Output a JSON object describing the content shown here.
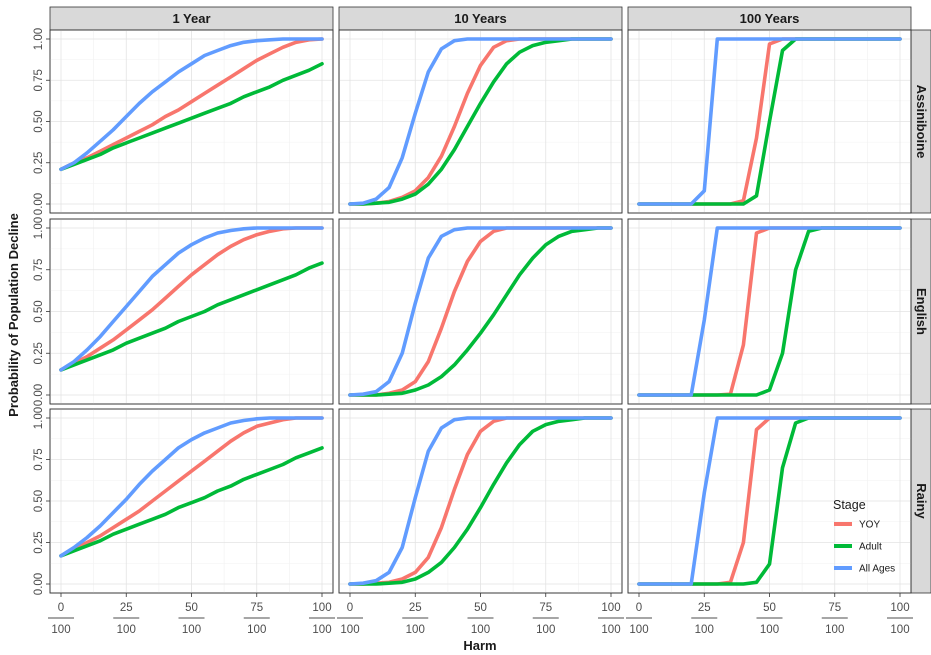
{
  "chart_data": {
    "type": "line",
    "facet_columns": [
      "1 Year",
      "10 Years",
      "100 Years"
    ],
    "facet_rows": [
      "Assiniboine",
      "English",
      "Rainy"
    ],
    "xlabel": "Harm",
    "ylabel": "Probability of Population Decline",
    "xlim": [
      0,
      1
    ],
    "ylim": [
      0,
      1
    ],
    "x_ticks": [
      {
        "num": "0",
        "den": "100"
      },
      {
        "num": "25",
        "den": "100"
      },
      {
        "num": "50",
        "den": "100"
      },
      {
        "num": "75",
        "den": "100"
      },
      {
        "num": "100",
        "den": "100"
      }
    ],
    "y_tick_labels": [
      "0.00",
      "0.25",
      "0.50",
      "0.75",
      "1.00"
    ],
    "y_tick_values": [
      0,
      0.25,
      0.5,
      0.75,
      1
    ],
    "grid": true,
    "legend": {
      "title": "Stage",
      "placement": "bottom-right inside",
      "entries": [
        {
          "label": "YOY",
          "color": "#f8766d"
        },
        {
          "label": "Adult",
          "color": "#00ba38"
        },
        {
          "label": "All Ages",
          "color": "#619cff"
        }
      ]
    },
    "x": [
      0,
      0.05,
      0.1,
      0.15,
      0.2,
      0.25,
      0.3,
      0.35,
      0.4,
      0.45,
      0.5,
      0.55,
      0.6,
      0.65,
      0.7,
      0.75,
      0.8,
      0.85,
      0.9,
      0.95,
      1.0
    ],
    "panels": [
      {
        "row": "Assiniboine",
        "col": "1 Year",
        "series": [
          {
            "name": "All Ages",
            "values": [
              0.21,
              0.25,
              0.31,
              0.38,
              0.45,
              0.53,
              0.61,
              0.68,
              0.74,
              0.8,
              0.85,
              0.9,
              0.93,
              0.96,
              0.98,
              0.99,
              0.995,
              1.0,
              1.0,
              1.0,
              1.0
            ]
          },
          {
            "name": "YOY",
            "values": [
              0.21,
              0.25,
              0.28,
              0.32,
              0.36,
              0.4,
              0.44,
              0.48,
              0.53,
              0.57,
              0.62,
              0.67,
              0.72,
              0.77,
              0.82,
              0.87,
              0.91,
              0.95,
              0.98,
              0.995,
              1.0
            ]
          },
          {
            "name": "Adult",
            "values": [
              0.21,
              0.24,
              0.27,
              0.3,
              0.34,
              0.37,
              0.4,
              0.43,
              0.46,
              0.49,
              0.52,
              0.55,
              0.58,
              0.61,
              0.65,
              0.68,
              0.71,
              0.75,
              0.78,
              0.81,
              0.85
            ]
          }
        ]
      },
      {
        "row": "Assiniboine",
        "col": "10 Years",
        "series": [
          {
            "name": "All Ages",
            "values": [
              0.0,
              0.005,
              0.03,
              0.1,
              0.28,
              0.55,
              0.8,
              0.94,
              0.99,
              1.0,
              1.0,
              1.0,
              1.0,
              1.0,
              1.0,
              1.0,
              1.0,
              1.0,
              1.0,
              1.0,
              1.0
            ]
          },
          {
            "name": "YOY",
            "values": [
              0.0,
              0.0,
              0.005,
              0.015,
              0.04,
              0.08,
              0.16,
              0.29,
              0.47,
              0.67,
              0.84,
              0.95,
              0.99,
              1.0,
              1.0,
              1.0,
              1.0,
              1.0,
              1.0,
              1.0,
              1.0
            ]
          },
          {
            "name": "Adult",
            "values": [
              0.0,
              0.0,
              0.005,
              0.01,
              0.03,
              0.06,
              0.12,
              0.21,
              0.33,
              0.47,
              0.61,
              0.74,
              0.85,
              0.92,
              0.96,
              0.98,
              0.99,
              1.0,
              1.0,
              1.0,
              1.0
            ]
          }
        ]
      },
      {
        "row": "Assiniboine",
        "col": "100 Years",
        "series": [
          {
            "name": "All Ages",
            "values": [
              0.0,
              0.0,
              0.0,
              0.0,
              0.0,
              0.08,
              1.0,
              1.0,
              1.0,
              1.0,
              1.0,
              1.0,
              1.0,
              1.0,
              1.0,
              1.0,
              1.0,
              1.0,
              1.0,
              1.0,
              1.0
            ]
          },
          {
            "name": "YOY",
            "values": [
              0.0,
              0.0,
              0.0,
              0.0,
              0.0,
              0.0,
              0.0,
              0.0,
              0.02,
              0.4,
              0.97,
              1.0,
              1.0,
              1.0,
              1.0,
              1.0,
              1.0,
              1.0,
              1.0,
              1.0,
              1.0
            ]
          },
          {
            "name": "Adult",
            "values": [
              0.0,
              0.0,
              0.0,
              0.0,
              0.0,
              0.0,
              0.0,
              0.0,
              0.0,
              0.05,
              0.5,
              0.93,
              1.0,
              1.0,
              1.0,
              1.0,
              1.0,
              1.0,
              1.0,
              1.0,
              1.0
            ]
          }
        ]
      },
      {
        "row": "English",
        "col": "1 Year",
        "series": [
          {
            "name": "All Ages",
            "values": [
              0.15,
              0.2,
              0.27,
              0.35,
              0.44,
              0.53,
              0.62,
              0.71,
              0.78,
              0.85,
              0.9,
              0.94,
              0.97,
              0.985,
              0.995,
              1.0,
              1.0,
              1.0,
              1.0,
              1.0,
              1.0
            ]
          },
          {
            "name": "YOY",
            "values": [
              0.15,
              0.19,
              0.23,
              0.28,
              0.33,
              0.39,
              0.45,
              0.51,
              0.58,
              0.65,
              0.72,
              0.78,
              0.84,
              0.89,
              0.93,
              0.96,
              0.98,
              0.995,
              1.0,
              1.0,
              1.0
            ]
          },
          {
            "name": "Adult",
            "values": [
              0.15,
              0.18,
              0.21,
              0.24,
              0.27,
              0.31,
              0.34,
              0.37,
              0.4,
              0.44,
              0.47,
              0.5,
              0.54,
              0.57,
              0.6,
              0.63,
              0.66,
              0.69,
              0.72,
              0.76,
              0.79
            ]
          }
        ]
      },
      {
        "row": "English",
        "col": "10 Years",
        "series": [
          {
            "name": "All Ages",
            "values": [
              0.0,
              0.005,
              0.02,
              0.08,
              0.25,
              0.55,
              0.82,
              0.95,
              0.99,
              1.0,
              1.0,
              1.0,
              1.0,
              1.0,
              1.0,
              1.0,
              1.0,
              1.0,
              1.0,
              1.0,
              1.0
            ]
          },
          {
            "name": "YOY",
            "values": [
              0.0,
              0.0,
              0.0,
              0.01,
              0.03,
              0.08,
              0.2,
              0.4,
              0.62,
              0.8,
              0.92,
              0.98,
              1.0,
              1.0,
              1.0,
              1.0,
              1.0,
              1.0,
              1.0,
              1.0,
              1.0
            ]
          },
          {
            "name": "Adult",
            "values": [
              0.0,
              0.0,
              0.0,
              0.005,
              0.01,
              0.03,
              0.06,
              0.11,
              0.18,
              0.27,
              0.37,
              0.48,
              0.6,
              0.72,
              0.82,
              0.9,
              0.95,
              0.98,
              0.99,
              1.0,
              1.0
            ]
          }
        ]
      },
      {
        "row": "English",
        "col": "100 Years",
        "series": [
          {
            "name": "All Ages",
            "values": [
              0.0,
              0.0,
              0.0,
              0.0,
              0.0,
              0.45,
              1.0,
              1.0,
              1.0,
              1.0,
              1.0,
              1.0,
              1.0,
              1.0,
              1.0,
              1.0,
              1.0,
              1.0,
              1.0,
              1.0,
              1.0
            ]
          },
          {
            "name": "YOY",
            "values": [
              0.0,
              0.0,
              0.0,
              0.0,
              0.0,
              0.0,
              0.0,
              0.005,
              0.3,
              0.97,
              1.0,
              1.0,
              1.0,
              1.0,
              1.0,
              1.0,
              1.0,
              1.0,
              1.0,
              1.0,
              1.0
            ]
          },
          {
            "name": "Adult",
            "values": [
              0.0,
              0.0,
              0.0,
              0.0,
              0.0,
              0.0,
              0.0,
              0.0,
              0.0,
              0.0,
              0.03,
              0.25,
              0.75,
              0.98,
              1.0,
              1.0,
              1.0,
              1.0,
              1.0,
              1.0,
              1.0
            ]
          }
        ]
      },
      {
        "row": "Rainy",
        "col": "1 Year",
        "series": [
          {
            "name": "All Ages",
            "values": [
              0.17,
              0.22,
              0.28,
              0.35,
              0.43,
              0.51,
              0.6,
              0.68,
              0.75,
              0.82,
              0.87,
              0.91,
              0.94,
              0.97,
              0.985,
              0.995,
              1.0,
              1.0,
              1.0,
              1.0,
              1.0
            ]
          },
          {
            "name": "YOY",
            "values": [
              0.17,
              0.21,
              0.25,
              0.29,
              0.34,
              0.39,
              0.44,
              0.5,
              0.56,
              0.62,
              0.68,
              0.74,
              0.8,
              0.86,
              0.91,
              0.95,
              0.97,
              0.99,
              1.0,
              1.0,
              1.0
            ]
          },
          {
            "name": "Adult",
            "values": [
              0.17,
              0.2,
              0.23,
              0.26,
              0.3,
              0.33,
              0.36,
              0.39,
              0.42,
              0.46,
              0.49,
              0.52,
              0.56,
              0.59,
              0.63,
              0.66,
              0.69,
              0.72,
              0.76,
              0.79,
              0.82
            ]
          }
        ]
      },
      {
        "row": "Rainy",
        "col": "10 Years",
        "series": [
          {
            "name": "All Ages",
            "values": [
              0.0,
              0.005,
              0.02,
              0.07,
              0.22,
              0.52,
              0.8,
              0.94,
              0.99,
              1.0,
              1.0,
              1.0,
              1.0,
              1.0,
              1.0,
              1.0,
              1.0,
              1.0,
              1.0,
              1.0,
              1.0
            ]
          },
          {
            "name": "YOY",
            "values": [
              0.0,
              0.0,
              0.005,
              0.01,
              0.03,
              0.07,
              0.16,
              0.34,
              0.57,
              0.78,
              0.92,
              0.98,
              1.0,
              1.0,
              1.0,
              1.0,
              1.0,
              1.0,
              1.0,
              1.0,
              1.0
            ]
          },
          {
            "name": "Adult",
            "values": [
              0.0,
              0.0,
              0.0,
              0.005,
              0.01,
              0.03,
              0.07,
              0.13,
              0.22,
              0.33,
              0.46,
              0.6,
              0.73,
              0.84,
              0.92,
              0.96,
              0.98,
              0.99,
              1.0,
              1.0,
              1.0
            ]
          }
        ]
      },
      {
        "row": "Rainy",
        "col": "100 Years",
        "series": [
          {
            "name": "All Ages",
            "values": [
              0.0,
              0.0,
              0.0,
              0.0,
              0.0,
              0.55,
              1.0,
              1.0,
              1.0,
              1.0,
              1.0,
              1.0,
              1.0,
              1.0,
              1.0,
              1.0,
              1.0,
              1.0,
              1.0,
              1.0,
              1.0
            ]
          },
          {
            "name": "YOY",
            "values": [
              0.0,
              0.0,
              0.0,
              0.0,
              0.0,
              0.0,
              0.0,
              0.01,
              0.25,
              0.93,
              1.0,
              1.0,
              1.0,
              1.0,
              1.0,
              1.0,
              1.0,
              1.0,
              1.0,
              1.0,
              1.0
            ]
          },
          {
            "name": "Adult",
            "values": [
              0.0,
              0.0,
              0.0,
              0.0,
              0.0,
              0.0,
              0.0,
              0.0,
              0.0,
              0.01,
              0.12,
              0.7,
              0.97,
              1.0,
              1.0,
              1.0,
              1.0,
              1.0,
              1.0,
              1.0,
              1.0
            ]
          }
        ]
      }
    ]
  }
}
